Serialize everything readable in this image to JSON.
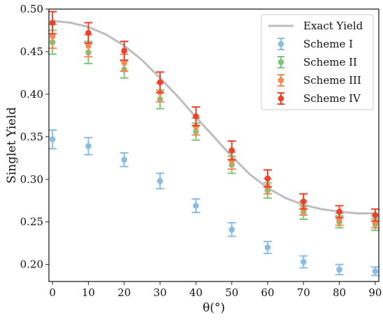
{
  "chart_data": {
    "type": "scatter",
    "xlabel": "θ(°)",
    "ylabel": "Singlet Yield",
    "xlim": [
      -1,
      91
    ],
    "ylim": [
      0.18,
      0.5
    ],
    "xticks": [
      0,
      10,
      20,
      30,
      40,
      50,
      60,
      70,
      80,
      90
    ],
    "yticks": [
      0.2,
      0.25,
      0.3,
      0.35,
      0.4,
      0.45,
      0.5
    ],
    "grid": false,
    "legend_position": "top-right",
    "line": {
      "name": "Exact Yield",
      "color": "#bdbdbd",
      "x": [
        0,
        5,
        10,
        15,
        20,
        25,
        30,
        35,
        40,
        45,
        50,
        55,
        60,
        65,
        70,
        75,
        80,
        85,
        90
      ],
      "y": [
        0.486,
        0.484,
        0.479,
        0.47,
        0.457,
        0.44,
        0.419,
        0.397,
        0.373,
        0.35,
        0.327,
        0.306,
        0.29,
        0.278,
        0.27,
        0.265,
        0.262,
        0.26,
        0.26
      ]
    },
    "series": [
      {
        "name": "Scheme I",
        "color": "#8bbde0",
        "x": [
          0,
          10,
          20,
          30,
          40,
          50,
          60,
          70,
          80,
          90
        ],
        "y": [
          0.347,
          0.339,
          0.323,
          0.298,
          0.269,
          0.241,
          0.22,
          0.203,
          0.194,
          0.192
        ],
        "err": [
          0.011,
          0.01,
          0.008,
          0.009,
          0.008,
          0.008,
          0.007,
          0.007,
          0.006,
          0.005
        ]
      },
      {
        "name": "Scheme II",
        "color": "#7fc47f",
        "x": [
          0,
          10,
          20,
          30,
          40,
          50,
          60,
          70,
          80,
          90
        ],
        "y": [
          0.461,
          0.449,
          0.429,
          0.394,
          0.356,
          0.317,
          0.287,
          0.261,
          0.25,
          0.247
        ],
        "err": [
          0.014,
          0.013,
          0.01,
          0.011,
          0.01,
          0.01,
          0.009,
          0.008,
          0.007,
          0.007
        ]
      },
      {
        "name": "Scheme III",
        "color": "#f28c50",
        "x": [
          0,
          10,
          20,
          30,
          40,
          50,
          60,
          70,
          80,
          90
        ],
        "y": [
          0.468,
          0.457,
          0.437,
          0.402,
          0.362,
          0.322,
          0.292,
          0.266,
          0.253,
          0.25
        ],
        "err": [
          0.014,
          0.013,
          0.01,
          0.011,
          0.01,
          0.01,
          0.009,
          0.008,
          0.007,
          0.007
        ]
      },
      {
        "name": "Scheme IV",
        "color": "#e8442c",
        "x": [
          0,
          10,
          20,
          30,
          40,
          50,
          60,
          70,
          80,
          90
        ],
        "y": [
          0.484,
          0.472,
          0.451,
          0.414,
          0.374,
          0.334,
          0.301,
          0.274,
          0.262,
          0.258
        ],
        "err": [
          0.013,
          0.012,
          0.011,
          0.012,
          0.011,
          0.011,
          0.01,
          0.009,
          0.007,
          0.007
        ]
      }
    ]
  }
}
